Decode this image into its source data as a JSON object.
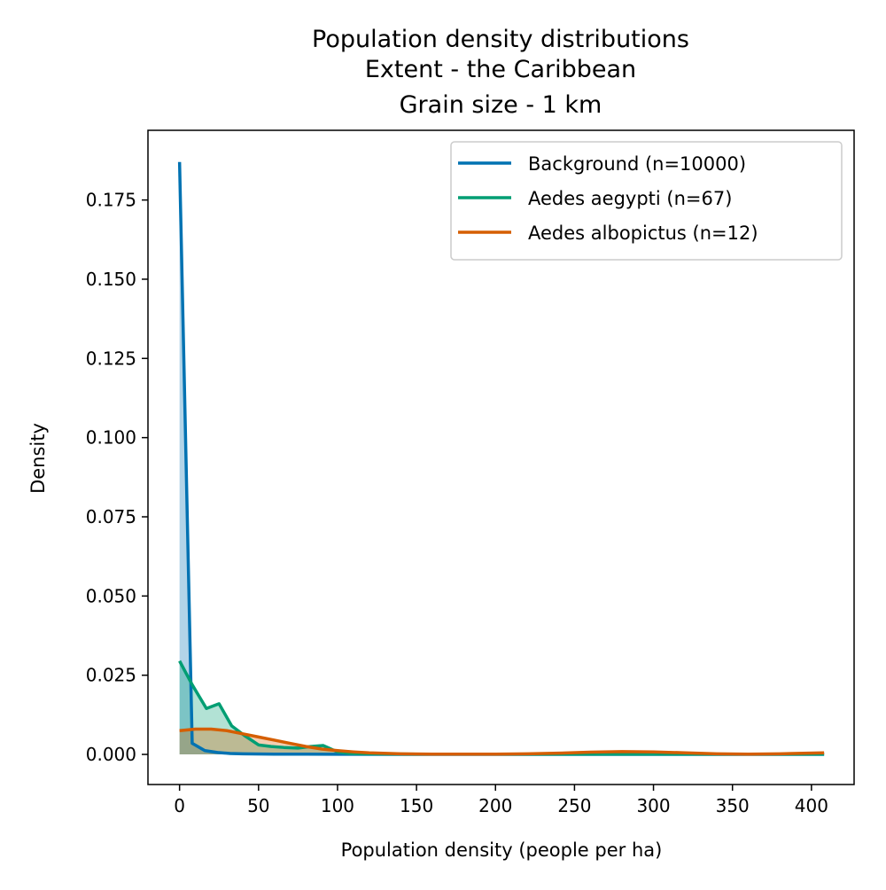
{
  "chart_data": {
    "type": "area",
    "title_lines": [
      "Population density distributions",
      "Extent - the Caribbean",
      "Grain size - 1 km"
    ],
    "xlabel": "Population density (people per ha)",
    "ylabel": "Density",
    "xlim": [
      -20,
      427
    ],
    "ylim": [
      -0.0095,
      0.197
    ],
    "xticks": [
      0,
      50,
      100,
      150,
      200,
      250,
      300,
      350,
      400
    ],
    "xtick_labels": [
      "0",
      "50",
      "100",
      "150",
      "200",
      "250",
      "300",
      "350",
      "400"
    ],
    "yticks": [
      0.0,
      0.025,
      0.05,
      0.075,
      0.1,
      0.125,
      0.15,
      0.175
    ],
    "ytick_labels": [
      "0.000",
      "0.025",
      "0.050",
      "0.075",
      "0.100",
      "0.125",
      "0.150",
      "0.175"
    ],
    "grid": false,
    "legend_position": "top-right",
    "series": [
      {
        "name": "Background (n=10000)",
        "color": "#0072b2",
        "fill_opacity": 0.3,
        "x": [
          0,
          8,
          16,
          24,
          32,
          40,
          60,
          80,
          100,
          150,
          200,
          250,
          300,
          350,
          408
        ],
        "y": [
          0.187,
          0.0035,
          0.0012,
          0.0006,
          0.0003,
          0.0002,
          0.0001,
          0.0001,
          5e-05,
          3e-05,
          2e-05,
          2e-05,
          1e-05,
          1e-05,
          1e-05
        ]
      },
      {
        "name": "Aedes aegypti (n=67)",
        "color": "#009e73",
        "fill_opacity": 0.3,
        "x": [
          0,
          8,
          17,
          25,
          33,
          41,
          50,
          58,
          66,
          75,
          83,
          91,
          100,
          108,
          116,
          150,
          200,
          250,
          300,
          350,
          408
        ],
        "y": [
          0.0295,
          0.022,
          0.0145,
          0.016,
          0.009,
          0.006,
          0.003,
          0.0025,
          0.0022,
          0.002,
          0.0025,
          0.0028,
          0.0008,
          0.0003,
          0.0002,
          0.0001,
          0.0001,
          0.0001,
          0.0001,
          0.0001,
          0.0001
        ]
      },
      {
        "name": "Aedes albopictus (n=12)",
        "color": "#d55e00",
        "fill_opacity": 0.3,
        "x": [
          0,
          10,
          20,
          30,
          40,
          50,
          60,
          70,
          80,
          90,
          100,
          110,
          120,
          140,
          160,
          180,
          200,
          220,
          240,
          260,
          280,
          300,
          320,
          340,
          360,
          380,
          408
        ],
        "y": [
          0.0075,
          0.008,
          0.008,
          0.0075,
          0.0065,
          0.0055,
          0.0045,
          0.0035,
          0.0025,
          0.0017,
          0.0012,
          0.0008,
          0.0005,
          0.0002,
          0.0001,
          0.0001,
          0.0001,
          0.0002,
          0.0004,
          0.0007,
          0.0009,
          0.0008,
          0.0005,
          0.0002,
          0.0001,
          0.0002,
          0.0005
        ]
      }
    ]
  }
}
